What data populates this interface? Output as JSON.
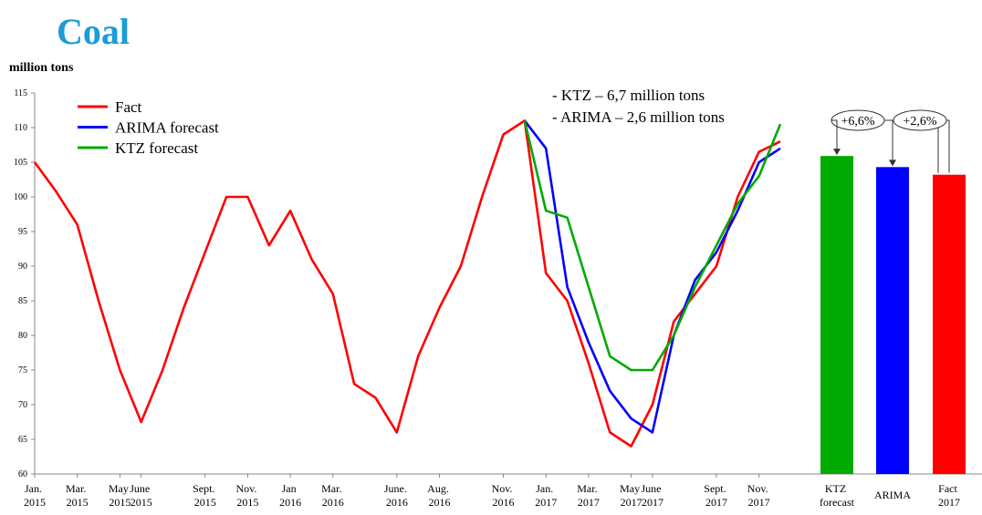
{
  "chart_data": [
    {
      "type": "line",
      "title": "Coal",
      "y_label": "million tons",
      "annotations": [
        "- KTZ – 6,7 million tons",
        "- ARIMA – 2,6 million tons"
      ],
      "categories": [
        "Jan. 2015",
        null,
        "Mar. 2015",
        null,
        "May 2015",
        "June 2015",
        null,
        null,
        "Sept. 2015",
        null,
        "Nov. 2015",
        null,
        "Jan 2016",
        null,
        "Mar. 2016",
        null,
        null,
        "June. 2016",
        null,
        "Aug. 2016",
        null,
        null,
        "Nov. 2016",
        null,
        "Jan. 2017",
        null,
        "Mar. 2017",
        null,
        "May 2017",
        "June 2017",
        null,
        null,
        "Sept. 2017",
        null,
        "Nov. 2017",
        null
      ],
      "series": [
        {
          "name": "Fact",
          "color": "#ff0000",
          "values": [
            105,
            100.8,
            96,
            85,
            75,
            67.5,
            75,
            84,
            92,
            100,
            100,
            93,
            98,
            91,
            86,
            73,
            71,
            66,
            77,
            84,
            90,
            100,
            109,
            111,
            89,
            85,
            76,
            66,
            64,
            70,
            82,
            86,
            90,
            100,
            106.5,
            108
          ]
        },
        {
          "name": "ARIMA  forecast",
          "color": "#0000ff",
          "values": [
            null,
            null,
            null,
            null,
            null,
            null,
            null,
            null,
            null,
            null,
            null,
            null,
            null,
            null,
            null,
            null,
            null,
            null,
            null,
            null,
            null,
            null,
            null,
            111,
            107,
            87,
            79,
            72,
            68,
            66,
            80,
            88,
            92,
            98,
            105,
            107
          ]
        },
        {
          "name": "KTZ forecast",
          "color": "#00aa00",
          "values": [
            null,
            null,
            null,
            null,
            null,
            null,
            null,
            null,
            null,
            null,
            null,
            null,
            null,
            null,
            null,
            null,
            null,
            null,
            null,
            null,
            null,
            null,
            null,
            111,
            98,
            97,
            87,
            77,
            75,
            75,
            80,
            87,
            93,
            99,
            103,
            110.5
          ]
        }
      ],
      "ylim": [
        60,
        115
      ],
      "yticks": [
        60,
        65,
        70,
        75,
        80,
        85,
        90,
        95,
        100,
        105,
        110,
        115
      ],
      "legend": "upper-left"
    },
    {
      "type": "bar",
      "categories": [
        "KTZ forecast",
        "ARIMA",
        "Fact 2017"
      ],
      "values": [
        105.9,
        104.3,
        103.2
      ],
      "colors": [
        "#00aa00",
        "#0000ff",
        "#ff0000"
      ],
      "ylim": [
        60,
        115
      ],
      "annotations": [
        "+6,6%",
        "+2,6%"
      ]
    }
  ]
}
